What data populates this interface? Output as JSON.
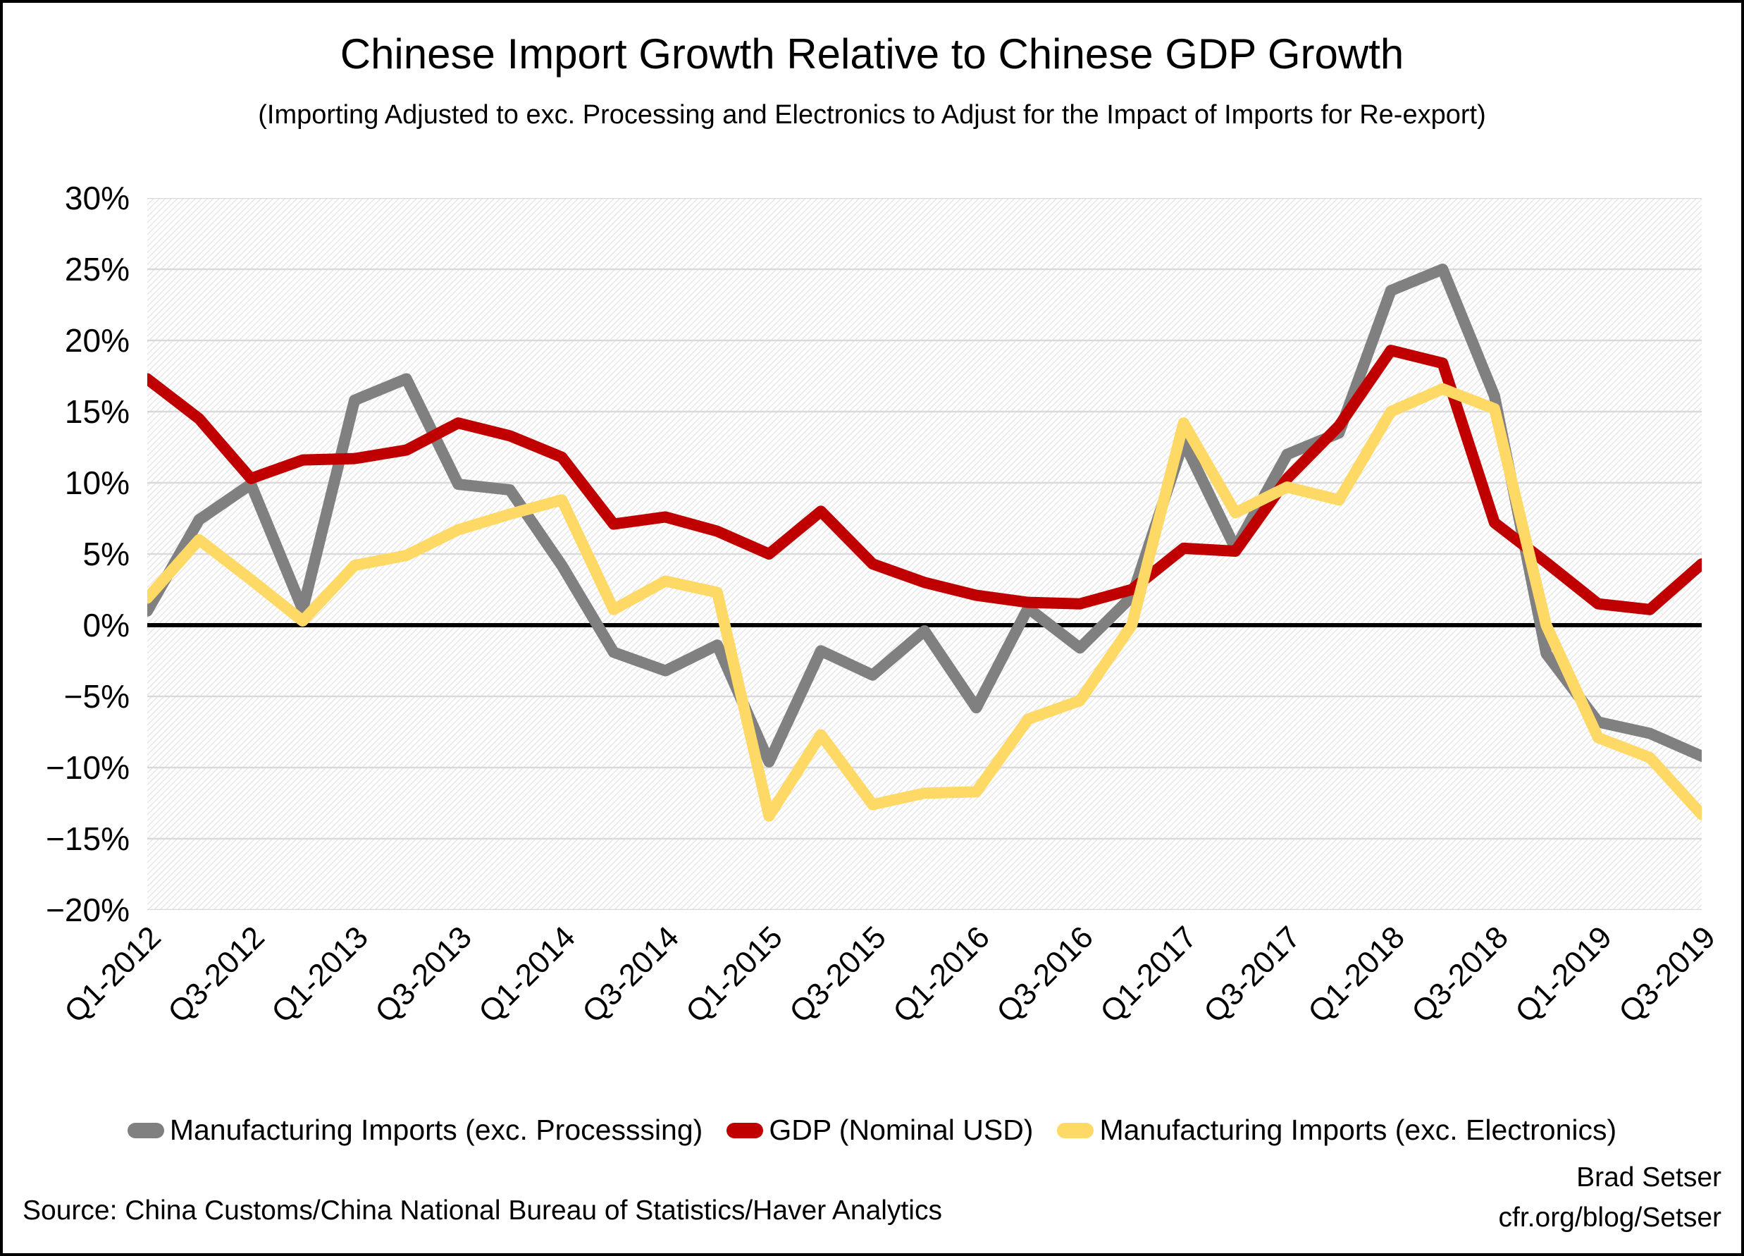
{
  "page": {
    "title": "Chinese Import Growth Relative to Chinese GDP Growth",
    "subtitle": "(Importing Adjusted to exc. Processing and Electronics to Adjust for the Impact of Imports for Re-export)"
  },
  "chart_data": {
    "type": "line",
    "title": "Chinese Import Growth Relative to Chinese GDP Growth",
    "subtitle": "(Importing Adjusted to exc. Processing and Electronics to Adjust for the Impact of Imports for Re-export)",
    "categories": [
      "Q1-2012",
      "Q2-2012",
      "Q3-2012",
      "Q4-2012",
      "Q1-2013",
      "Q2-2013",
      "Q3-2013",
      "Q4-2013",
      "Q1-2014",
      "Q2-2014",
      "Q3-2014",
      "Q4-2014",
      "Q1-2015",
      "Q2-2015",
      "Q3-2015",
      "Q4-2015",
      "Q1-2016",
      "Q2-2016",
      "Q3-2016",
      "Q4-2016",
      "Q1-2017",
      "Q2-2017",
      "Q3-2017",
      "Q4-2017",
      "Q1-2018",
      "Q2-2018",
      "Q3-2018",
      "Q4-2018",
      "Q1-2019",
      "Q2-2019",
      "Q3-2019"
    ],
    "x_tick_every": 2,
    "x_tick_labels": [
      "Q1-2012",
      "Q3-2012",
      "Q1-2013",
      "Q3-2013",
      "Q1-2014",
      "Q3-2014",
      "Q1-2015",
      "Q3-2015",
      "Q1-2016",
      "Q3-2016",
      "Q1-2017",
      "Q3-2017",
      "Q1-2018",
      "Q3-2018",
      "Q1-2019",
      "Q3-2019"
    ],
    "y_tick_labels": [
      "30%",
      "25%",
      "20%",
      "15%",
      "10%",
      "5%",
      "0%",
      "−5%",
      "−10%",
      "−15%",
      "−20%"
    ],
    "ylim": [
      -20,
      30
    ],
    "y_tick_step": 5,
    "grid": true,
    "zero_line_color": "#000000",
    "gridline_color": "#d9d9d9",
    "plot_background": "diagonal-hatch",
    "legend_position": "bottom",
    "series": [
      {
        "name": "Manufacturing Imports (exc. Processsing)",
        "color": "#808080",
        "values": [
          1.0,
          7.4,
          9.9,
          1.1,
          15.8,
          17.3,
          9.9,
          9.5,
          4.2,
          -1.9,
          -3.2,
          -1.4,
          -9.6,
          -1.8,
          -3.5,
          -0.4,
          -5.8,
          1.2,
          -1.6,
          2.0,
          12.9,
          5.4,
          12.0,
          13.5,
          23.5,
          25.0,
          16.1,
          -2.0,
          -6.8,
          -7.6,
          -9.2
        ]
      },
      {
        "name": "GDP (Nominal USD)",
        "color": "#c00000",
        "values": [
          17.3,
          14.5,
          10.3,
          11.6,
          11.7,
          12.3,
          14.2,
          13.3,
          11.8,
          7.1,
          7.6,
          6.6,
          5.0,
          8.0,
          4.3,
          3.0,
          2.1,
          1.6,
          1.5,
          2.5,
          5.4,
          5.2,
          10.3,
          14.0,
          19.3,
          18.4,
          7.2,
          4.4,
          1.5,
          1.1,
          4.3
        ]
      },
      {
        "name": "Manufacturing Imports (exc. Electronics)",
        "color": "#ffd966",
        "values": [
          1.9,
          6.0,
          3.2,
          0.3,
          4.2,
          4.9,
          6.7,
          7.8,
          8.8,
          1.1,
          3.1,
          2.3,
          -13.4,
          -7.7,
          -12.6,
          -11.8,
          -11.7,
          -6.6,
          -5.3,
          0.0,
          14.2,
          7.9,
          9.7,
          8.8,
          15.0,
          16.6,
          15.2,
          0.0,
          -7.9,
          -9.3,
          -13.3
        ]
      }
    ]
  },
  "footer": {
    "source": "Source: China Customs/China National Bureau of Statistics/Haver Analytics",
    "credit_line1": "Brad Setser",
    "credit_line2": "cfr.org/blog/Setser"
  }
}
